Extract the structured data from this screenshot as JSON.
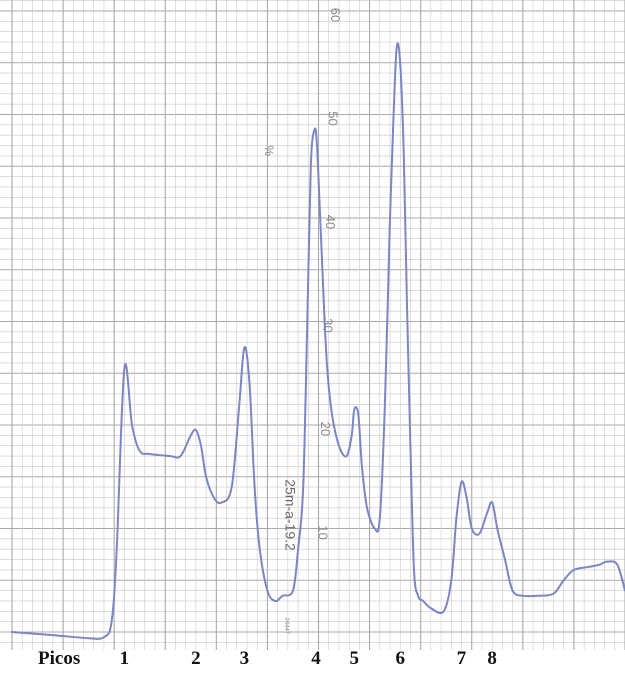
{
  "chart_data": {
    "type": "line",
    "title": "",
    "xlabel": "",
    "ylabel": "%",
    "ylim": [
      -2,
      63
    ],
    "grid": true,
    "y_ticks": [
      "10",
      "20",
      "30",
      "40",
      "50",
      "60"
    ],
    "peak_axis_label": "Picos",
    "peaks": [
      {
        "label": "1",
        "x": 22,
        "y": 25.5
      },
      {
        "label": "2",
        "x": 36,
        "y": 19.5
      },
      {
        "label": "3",
        "x": 45.5,
        "y": 27.5
      },
      {
        "label": "4",
        "x": 59.5,
        "y": 48.5
      },
      {
        "label": "5",
        "x": 67,
        "y": 21.5
      },
      {
        "label": "6",
        "x": 76,
        "y": 56.5
      },
      {
        "label": "7",
        "x": 88,
        "y": 14.5
      },
      {
        "label": "8",
        "x": 94,
        "y": 12.5
      }
    ],
    "series": [
      {
        "x": [
          0,
          8,
          15,
          18,
          19.5,
          20.5,
          22,
          23.5,
          25,
          27,
          31,
          33,
          35,
          36,
          37,
          38,
          39.5,
          41,
          43,
          44.5,
          45.5,
          46.5,
          47.5,
          48.5,
          50,
          51.5,
          53,
          55,
          56,
          57,
          57.8,
          58.5,
          59.2,
          59.7,
          60.5,
          61.5,
          62.5,
          64,
          65.5,
          66.5,
          67,
          67.8,
          68.5,
          69.5,
          71,
          72,
          73,
          74,
          74.7,
          75.3,
          76,
          76.7,
          77.3,
          78,
          78.7,
          79.5,
          80.5,
          82,
          84.5,
          86,
          87,
          88,
          89,
          90,
          91.5,
          93,
          94,
          95,
          96.5,
          98,
          100,
          103,
          106,
          108,
          110,
          113,
          115,
          116.5,
          118.5,
          120
        ],
        "y": [
          0,
          -0.3,
          -0.6,
          -0.5,
          1,
          8,
          25.5,
          20,
          17.5,
          17.2,
          17,
          17,
          19,
          19.5,
          18,
          15,
          13,
          12.5,
          14,
          22,
          27.5,
          24,
          14,
          8,
          4,
          3,
          3.5,
          4,
          8,
          14,
          30,
          45,
          48.5,
          47,
          38,
          27,
          21.5,
          18,
          17,
          19,
          21.5,
          21,
          16,
          12,
          10,
          11,
          22,
          40,
          50,
          56.5,
          55,
          46,
          32,
          18,
          6,
          3.5,
          3,
          2.3,
          2,
          5,
          11,
          14.5,
          13,
          10,
          9.5,
          11.5,
          12.5,
          10,
          7,
          4,
          3.5,
          3.5,
          3.7,
          5,
          6,
          6.3,
          6.5,
          6.8,
          6.5,
          4
        ]
      }
    ],
    "annotations": [
      "25m-a-19.2",
      "24447"
    ]
  }
}
